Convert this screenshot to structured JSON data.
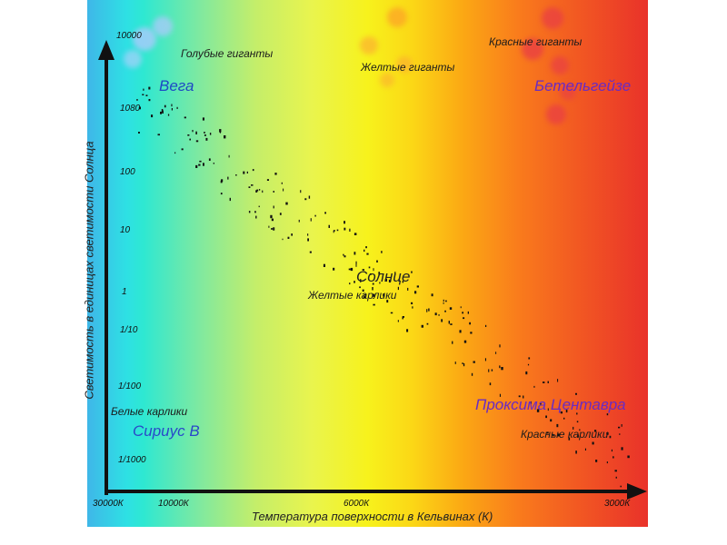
{
  "title": "",
  "y_axis": {
    "label": "Светимость в единицах светимости Солнца",
    "ticks": [
      "10000",
      "1080",
      "100",
      "10",
      "1",
      "1/10",
      "1/100",
      "1/1000"
    ]
  },
  "x_axis": {
    "label": "Температура поверхности в Кельвинах (К)",
    "ticks": [
      "30000К",
      "10000К",
      "6000К",
      "3000К"
    ]
  },
  "groups": {
    "blue_giants": "Голубые гиганты",
    "yellow_giants": "Желтые гиганты",
    "red_giants": "Красные гиганты",
    "yellow_dwarfs": "Желтые карлики",
    "white_dwarfs": "Белые карлики",
    "red_dwarfs": "Красные карлики"
  },
  "stars": {
    "vega": "Вега",
    "betelgeuse": "Бетельгейзе",
    "sun": "Солнце",
    "sirius_b": "Сириус В",
    "proxima": "Проксима Центавра"
  },
  "colors": {
    "hot_blue": "#3fb7e8",
    "cyan": "#2ee0e4",
    "yellow": "#f7f21c",
    "orange": "#fba814",
    "red": "#e9322a",
    "vega_label": "#1f49c4",
    "sirius_label": "#2a49c9",
    "betelgeuse_label": "#6a2bc2",
    "proxima_label": "#6a2bc2"
  }
}
